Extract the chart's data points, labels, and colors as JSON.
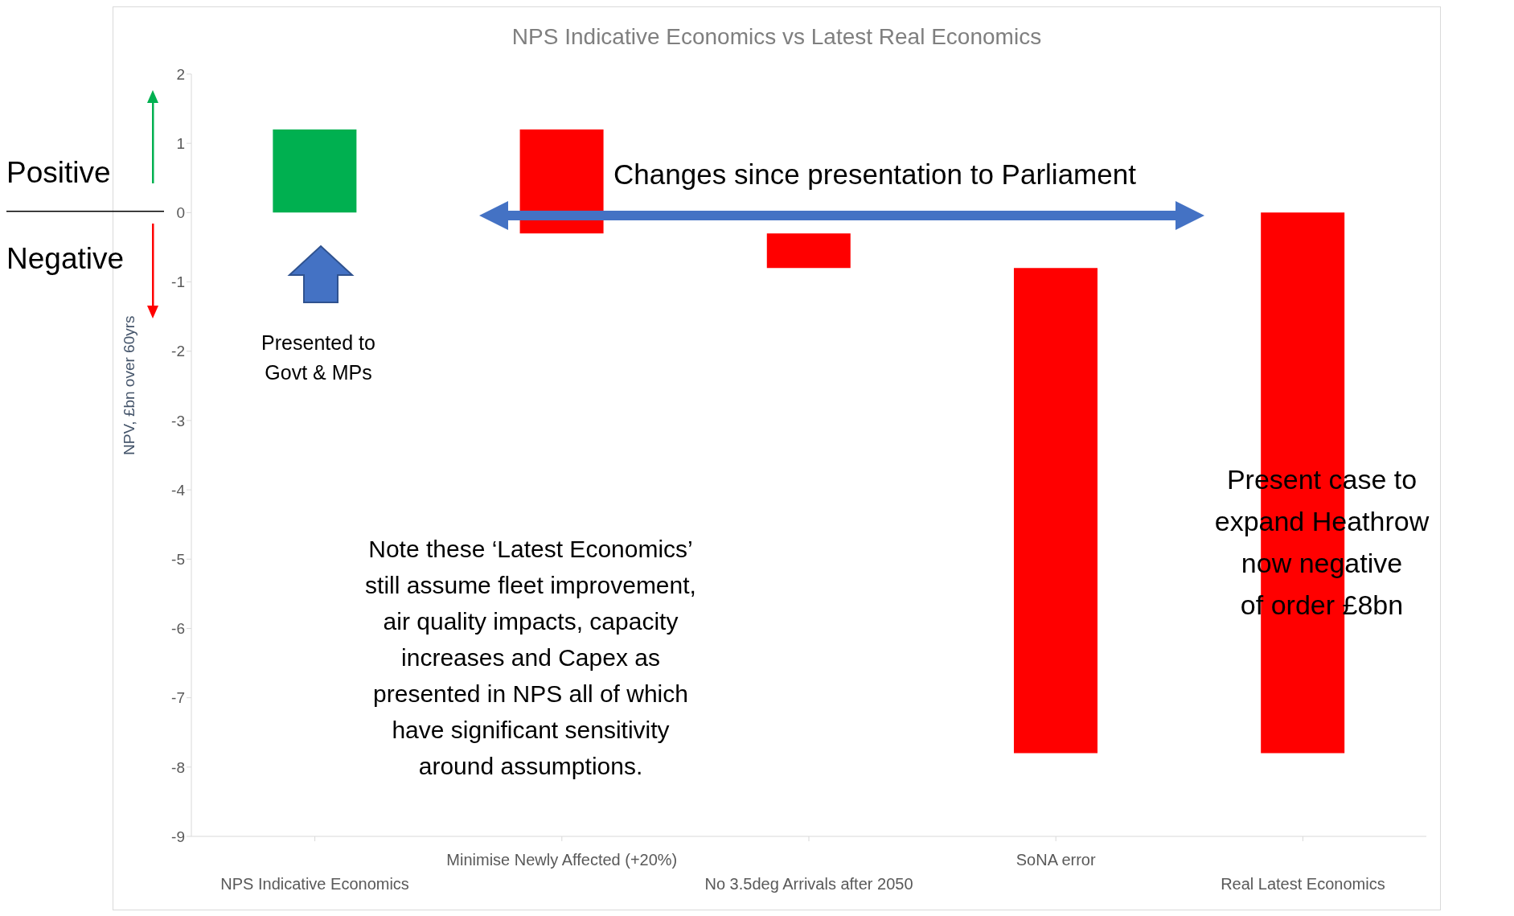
{
  "chart_data": {
    "type": "bar",
    "title": "NPS Indicative  Economics  vs Latest  Real  Economics",
    "ylabel": "NPV, £bn over 60yrs",
    "categories": [
      "NPS Indicative Economics",
      "Minimise Newly Affected (+20%)",
      "No 3.5deg Arrivals after 2050",
      "SoNA error",
      "Real Latest Economics"
    ],
    "values": [
      1.2,
      -1.5,
      -0.5,
      -7,
      -7.8
    ],
    "base": [
      0,
      1.2,
      -0.3,
      -0.8,
      0
    ],
    "colors": [
      "#00b050",
      "#ff0000",
      "#ff0000",
      "#ff0000",
      "#ff0000"
    ],
    "ylim": [
      -9,
      2
    ],
    "yticks": [
      -9,
      -8,
      -7,
      -6,
      -5,
      -4,
      -3,
      -2,
      -1,
      0,
      1,
      2
    ],
    "grid": false,
    "legend": false,
    "annotations": [
      "Positive",
      "Negative",
      "Presented to\nGovt & MPs",
      "Changes since presentation to Parliament",
      "Note these ‘Latest Economics’\nstill assume fleet improvement,\nair quality impacts, capacity\nincreases and Capex as\npresented in NPS all of which\nhave significant sensitivity\naround assumptions.",
      "Present case to\nexpand Heathrow\nnow negative\nof order £8bn"
    ]
  }
}
